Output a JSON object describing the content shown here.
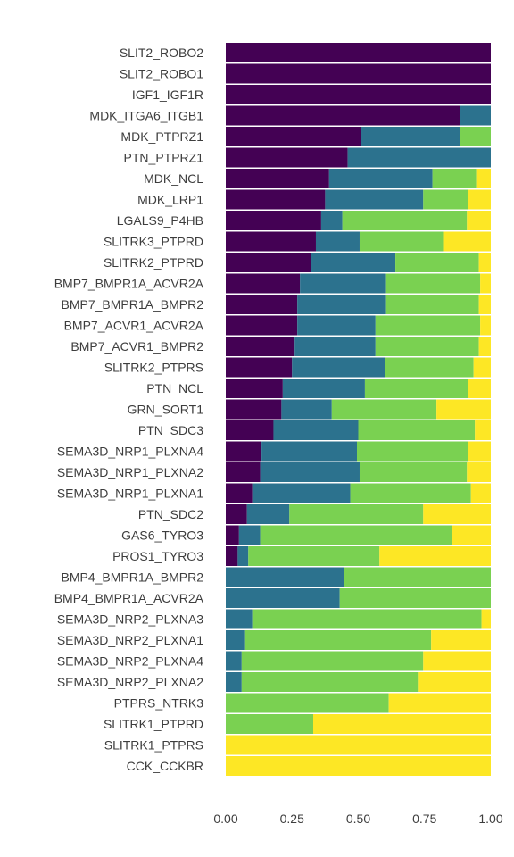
{
  "chart_data": {
    "type": "bar",
    "orientation": "horizontal",
    "stacked": true,
    "normalized": true,
    "xlim": [
      0,
      1
    ],
    "x_ticks": [
      "0.00",
      "0.25",
      "0.50",
      "0.75",
      "1.00"
    ],
    "grid": false,
    "legend": "none",
    "categories": [
      "SLIT2_ROBO2",
      "SLIT2_ROBO1",
      "IGF1_IGF1R",
      "MDK_ITGA6_ITGB1",
      "MDK_PTPRZ1",
      "PTN_PTPRZ1",
      "MDK_NCL",
      "MDK_LRP1",
      "LGALS9_P4HB",
      "SLITRK3_PTPRD",
      "SLITRK2_PTPRD",
      "BMP7_BMPR1A_ACVR2A",
      "BMP7_BMPR1A_BMPR2",
      "BMP7_ACVR1_ACVR2A",
      "BMP7_ACVR1_BMPR2",
      "SLITRK2_PTPRS",
      "PTN_NCL",
      "GRN_SORT1",
      "PTN_SDC3",
      "SEMA3D_NRP1_PLXNA4",
      "SEMA3D_NRP1_PLXNA2",
      "SEMA3D_NRP1_PLXNA1",
      "PTN_SDC2",
      "GAS6_TYRO3",
      "PROS1_TYRO3",
      "BMP4_BMPR1A_BMPR2",
      "BMP4_BMPR1A_ACVR2A",
      "SEMA3D_NRP2_PLXNA3",
      "SEMA3D_NRP2_PLXNA1",
      "SEMA3D_NRP2_PLXNA4",
      "SEMA3D_NRP2_PLXNA2",
      "PTPRS_NTRK3",
      "SLITRK1_PTPRD",
      "SLITRK1_PTPRS",
      "CCK_CCKBR"
    ],
    "series": [
      {
        "color": "#440154",
        "values": [
          1.0,
          1.0,
          1.0,
          0.885,
          0.51,
          0.46,
          0.39,
          0.375,
          0.36,
          0.34,
          0.32,
          0.28,
          0.27,
          0.27,
          0.26,
          0.25,
          0.215,
          0.21,
          0.18,
          0.135,
          0.13,
          0.1,
          0.08,
          0.05,
          0.045,
          0.0,
          0.0,
          0.0,
          0.0,
          0.0,
          0.0,
          0.0,
          0.0,
          0.0,
          0.0
        ]
      },
      {
        "color": "#2c728e",
        "values": [
          0.0,
          0.0,
          0.0,
          0.115,
          0.375,
          0.54,
          0.39,
          0.37,
          0.08,
          0.165,
          0.32,
          0.325,
          0.335,
          0.295,
          0.305,
          0.35,
          0.31,
          0.19,
          0.32,
          0.36,
          0.375,
          0.37,
          0.16,
          0.08,
          0.04,
          0.445,
          0.43,
          0.1,
          0.07,
          0.06,
          0.06,
          0.0,
          0.0,
          0.0,
          0.0
        ]
      },
      {
        "color": "#7ad151",
        "values": [
          0.0,
          0.0,
          0.0,
          0.0,
          0.115,
          0.0,
          0.165,
          0.17,
          0.47,
          0.315,
          0.315,
          0.355,
          0.35,
          0.395,
          0.39,
          0.335,
          0.39,
          0.395,
          0.44,
          0.42,
          0.405,
          0.455,
          0.505,
          0.725,
          0.495,
          0.555,
          0.57,
          0.865,
          0.705,
          0.685,
          0.665,
          0.615,
          0.33,
          0.0,
          0.0
        ]
      },
      {
        "color": "#fde725",
        "values": [
          0.0,
          0.0,
          0.0,
          0.0,
          0.0,
          0.0,
          0.055,
          0.085,
          0.09,
          0.18,
          0.045,
          0.04,
          0.045,
          0.04,
          0.045,
          0.065,
          0.085,
          0.205,
          0.06,
          0.085,
          0.09,
          0.075,
          0.255,
          0.145,
          0.42,
          0.0,
          0.0,
          0.035,
          0.225,
          0.255,
          0.275,
          0.385,
          0.67,
          1.0,
          1.0
        ]
      }
    ]
  }
}
